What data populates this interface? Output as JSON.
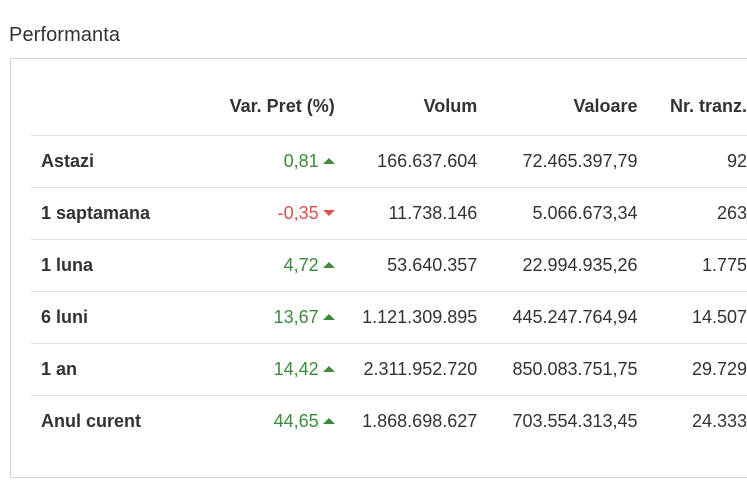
{
  "section": {
    "title": "Performanta"
  },
  "table": {
    "headers": {
      "label": "",
      "var": "Var. Pret (%)",
      "volum": "Volum",
      "valoare": "Valoare",
      "nr": "Nr. tranz."
    },
    "rows": [
      {
        "label": "Astazi",
        "var": "0,81",
        "trend": "up",
        "volum": "166.637.604",
        "valoare": "72.465.397,79",
        "nr": "92"
      },
      {
        "label": "1 saptamana",
        "var": "-0,35",
        "trend": "down",
        "volum": "11.738.146",
        "valoare": "5.066.673,34",
        "nr": "263"
      },
      {
        "label": "1 luna",
        "var": "4,72",
        "trend": "up",
        "volum": "53.640.357",
        "valoare": "22.994.935,26",
        "nr": "1.775"
      },
      {
        "label": "6 luni",
        "var": "13,67",
        "trend": "up",
        "volum": "1.121.309.895",
        "valoare": "445.247.764,94",
        "nr": "14.507"
      },
      {
        "label": "1 an",
        "var": "14,42",
        "trend": "up",
        "volum": "2.311.952.720",
        "valoare": "850.083.751,75",
        "nr": "29.729"
      },
      {
        "label": "Anul curent",
        "var": "44,65",
        "trend": "up",
        "volum": "1.868.698.627",
        "valoare": "703.554.313,45",
        "nr": "24.333"
      }
    ]
  },
  "colors": {
    "up": "#3c8a3c",
    "down": "#d9534f",
    "border": "#d3d3d3",
    "row_divider": "#e2e2e2"
  },
  "icons": {
    "up": "triangle-up-icon",
    "down": "triangle-down-icon"
  }
}
